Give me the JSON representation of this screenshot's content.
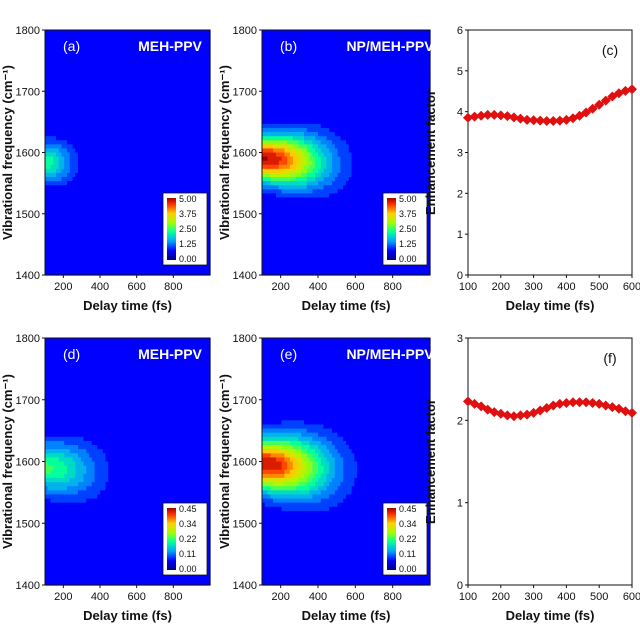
{
  "chart_data": [
    {
      "id": "a",
      "type": "heatmap",
      "panel_label": "(a)",
      "title": "MEH-PPV",
      "xlabel": "Delay time (fs)",
      "ylabel": "Vibrational frequency (cm⁻¹)",
      "xlim": [
        100,
        1000
      ],
      "ylim": [
        1400,
        1800
      ],
      "xticks": [
        "200",
        "400",
        "600",
        "800"
      ],
      "yticks": [
        "1400",
        "1500",
        "1600",
        "1700",
        "1800"
      ],
      "colorbar": [
        "5.00",
        "3.75",
        "2.50",
        "1.25",
        "0.00"
      ],
      "zmax": 5.0,
      "peak": {
        "x": 100,
        "y": 1585,
        "z": 2.0
      },
      "sigma_t": 140,
      "sigma_f": 30
    },
    {
      "id": "b",
      "type": "heatmap",
      "panel_label": "(b)",
      "title": "NP/MEH-PPV",
      "xlabel": "Delay time (fs)",
      "ylabel": "Vibrational frequency (cm⁻¹)",
      "xlim": [
        100,
        1000
      ],
      "ylim": [
        1400,
        1800
      ],
      "xticks": [
        "200",
        "400",
        "600",
        "800"
      ],
      "yticks": [
        "1400",
        "1500",
        "1600",
        "1700",
        "1800"
      ],
      "colorbar": [
        "5.00",
        "3.75",
        "2.50",
        "1.25",
        "0.00"
      ],
      "zmax": 5.0,
      "peak": {
        "x": 130,
        "y": 1590,
        "z": 5.0
      },
      "sigma_t": 280,
      "sigma_f": 35
    },
    {
      "id": "c",
      "type": "line",
      "panel_label": "(c)",
      "xlabel": "Delay time (fs)",
      "ylabel": "Enhancement factor",
      "xlim": [
        100,
        600
      ],
      "ylim": [
        0,
        6
      ],
      "xticks": [
        "100",
        "200",
        "300",
        "400",
        "500",
        "600"
      ],
      "yticks": [
        "0",
        "1",
        "2",
        "3",
        "4",
        "5",
        "6"
      ],
      "x": [
        100,
        120,
        140,
        160,
        180,
        200,
        220,
        240,
        260,
        280,
        300,
        320,
        340,
        360,
        380,
        400,
        420,
        440,
        460,
        480,
        500,
        520,
        540,
        560,
        580,
        600
      ],
      "y": [
        3.85,
        3.88,
        3.9,
        3.92,
        3.92,
        3.91,
        3.89,
        3.86,
        3.83,
        3.8,
        3.79,
        3.78,
        3.77,
        3.77,
        3.78,
        3.8,
        3.84,
        3.9,
        3.98,
        4.07,
        4.17,
        4.27,
        4.37,
        4.45,
        4.51,
        4.55
      ]
    },
    {
      "id": "d",
      "type": "heatmap",
      "panel_label": "(d)",
      "title": "MEH-PPV",
      "xlabel": "Delay time (fs)",
      "ylabel": "Vibrational frequency (cm⁻¹)",
      "xlim": [
        100,
        1000
      ],
      "ylim": [
        1400,
        1800
      ],
      "xticks": [
        "200",
        "400",
        "600",
        "800"
      ],
      "yticks": [
        "1400",
        "1500",
        "1600",
        "1700",
        "1800"
      ],
      "colorbar": [
        "0.45",
        "0.34",
        "0.22",
        "0.11",
        "0.00"
      ],
      "zmax": 0.45,
      "peak": {
        "x": 100,
        "y": 1590,
        "z": 0.2
      },
      "sigma_t": 260,
      "sigma_f": 38
    },
    {
      "id": "e",
      "type": "heatmap",
      "panel_label": "(e)",
      "title": "NP/MEH-PPV",
      "xlabel": "Delay time (fs)",
      "ylabel": "Vibrational frequency (cm⁻¹)",
      "xlim": [
        100,
        1000
      ],
      "ylim": [
        1400,
        1800
      ],
      "xticks": [
        "200",
        "400",
        "600",
        "800"
      ],
      "yticks": [
        "1400",
        "1500",
        "1600",
        "1700",
        "1800"
      ],
      "colorbar": [
        "0.45",
        "0.34",
        "0.22",
        "0.11",
        "0.00"
      ],
      "zmax": 0.45,
      "peak": {
        "x": 120,
        "y": 1595,
        "z": 0.45
      },
      "sigma_t": 300,
      "sigma_f": 40
    },
    {
      "id": "f",
      "type": "line",
      "panel_label": "(f)",
      "xlabel": "Delay time (fs)",
      "ylabel": "Enhancement factor",
      "xlim": [
        100,
        600
      ],
      "ylim": [
        0,
        3
      ],
      "xticks": [
        "100",
        "200",
        "300",
        "400",
        "500",
        "600"
      ],
      "yticks": [
        "0",
        "1",
        "2",
        "3"
      ],
      "x": [
        100,
        120,
        140,
        160,
        180,
        200,
        220,
        240,
        260,
        280,
        300,
        320,
        340,
        360,
        380,
        400,
        420,
        440,
        460,
        480,
        500,
        520,
        540,
        560,
        580,
        600
      ],
      "y": [
        2.23,
        2.2,
        2.17,
        2.13,
        2.1,
        2.08,
        2.06,
        2.05,
        2.06,
        2.07,
        2.09,
        2.12,
        2.15,
        2.18,
        2.2,
        2.21,
        2.22,
        2.22,
        2.22,
        2.21,
        2.2,
        2.18,
        2.16,
        2.14,
        2.11,
        2.09
      ]
    }
  ]
}
